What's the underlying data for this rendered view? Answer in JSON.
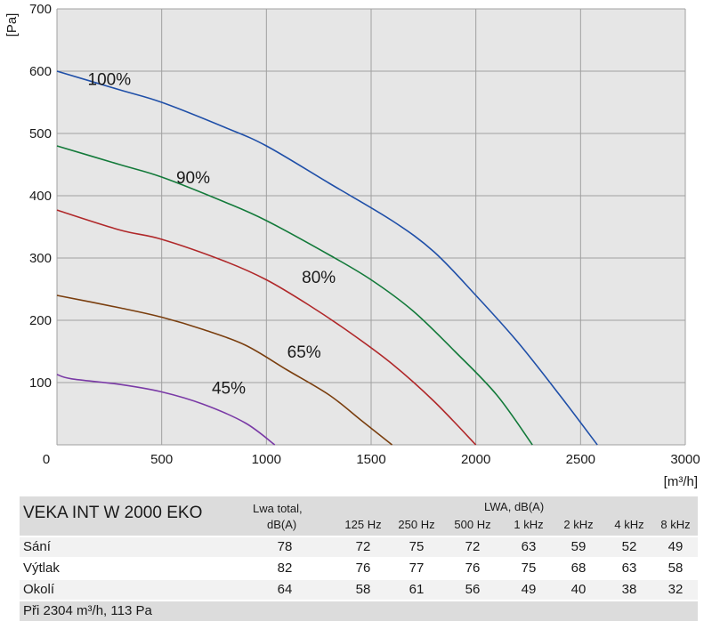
{
  "chart_data": {
    "type": "line",
    "ylabel": "[Pa]",
    "xlabel": "[m³/h]",
    "xlim": [
      0,
      3000
    ],
    "ylim": [
      0,
      700
    ],
    "x_ticks": [
      "0",
      "500",
      "1000",
      "1500",
      "2000",
      "2500",
      "3000"
    ],
    "y_ticks": [
      "0",
      "100",
      "200",
      "300",
      "400",
      "500",
      "600",
      "700"
    ],
    "grid": true,
    "series": [
      {
        "name": "100%",
        "color": "#1f4fa8",
        "points": [
          [
            0,
            600
          ],
          [
            300,
            570
          ],
          [
            500,
            550
          ],
          [
            800,
            510
          ],
          [
            1000,
            480
          ],
          [
            1300,
            420
          ],
          [
            1600,
            360
          ],
          [
            1800,
            310
          ],
          [
            2000,
            240
          ],
          [
            2200,
            165
          ],
          [
            2400,
            80
          ],
          [
            2580,
            0
          ]
        ]
      },
      {
        "name": "90%",
        "color": "#137a3a",
        "points": [
          [
            0,
            480
          ],
          [
            300,
            450
          ],
          [
            500,
            430
          ],
          [
            800,
            390
          ],
          [
            1000,
            360
          ],
          [
            1300,
            305
          ],
          [
            1500,
            265
          ],
          [
            1700,
            215
          ],
          [
            1900,
            150
          ],
          [
            2100,
            80
          ],
          [
            2270,
            0
          ]
        ]
      },
      {
        "name": "80%",
        "color": "#b0282a",
        "points": [
          [
            0,
            377
          ],
          [
            300,
            345
          ],
          [
            500,
            330
          ],
          [
            800,
            295
          ],
          [
            1000,
            265
          ],
          [
            1200,
            225
          ],
          [
            1400,
            180
          ],
          [
            1600,
            130
          ],
          [
            1800,
            70
          ],
          [
            2000,
            0
          ]
        ]
      },
      {
        "name": "65%",
        "color": "#7a3e0e",
        "points": [
          [
            0,
            240
          ],
          [
            300,
            220
          ],
          [
            500,
            205
          ],
          [
            700,
            185
          ],
          [
            900,
            160
          ],
          [
            1100,
            120
          ],
          [
            1300,
            80
          ],
          [
            1450,
            40
          ],
          [
            1600,
            0
          ]
        ]
      },
      {
        "name": "45%",
        "color": "#7a3aa6",
        "points": [
          [
            0,
            113
          ],
          [
            70,
            106
          ],
          [
            300,
            97
          ],
          [
            500,
            85
          ],
          [
            700,
            65
          ],
          [
            900,
            35
          ],
          [
            1040,
            0
          ]
        ]
      }
    ],
    "curve_labels": [
      {
        "text": "100%",
        "x": 250,
        "y": 578
      },
      {
        "text": "90%",
        "x": 650,
        "y": 420
      },
      {
        "text": "80%",
        "x": 1250,
        "y": 260
      },
      {
        "text": "65%",
        "x": 1180,
        "y": 140
      },
      {
        "text": "45%",
        "x": 820,
        "y": 82
      }
    ]
  },
  "table": {
    "product": "VEKA INT W 2000 EKO",
    "lwa_total_line1": "Lwa total,",
    "lwa_total_line2": "dB(A)",
    "lwa_header": "LWA, dB(A)",
    "freqs": [
      "125  Hz",
      "250  Hz",
      "500  Hz",
      "1 kHz",
      "2 kHz",
      "4 kHz",
      "8 kHz"
    ],
    "rows": [
      {
        "label": "Sání",
        "total": "78",
        "values": [
          "72",
          "75",
          "72",
          "63",
          "59",
          "52",
          "49"
        ]
      },
      {
        "label": "Výtlak",
        "total": "82",
        "values": [
          "76",
          "77",
          "76",
          "75",
          "68",
          "63",
          "58"
        ]
      },
      {
        "label": "Okolí",
        "total": "64",
        "values": [
          "58",
          "61",
          "56",
          "49",
          "40",
          "38",
          "32"
        ]
      }
    ],
    "footer": "Při 2304  m³/h, 113 Pa"
  }
}
